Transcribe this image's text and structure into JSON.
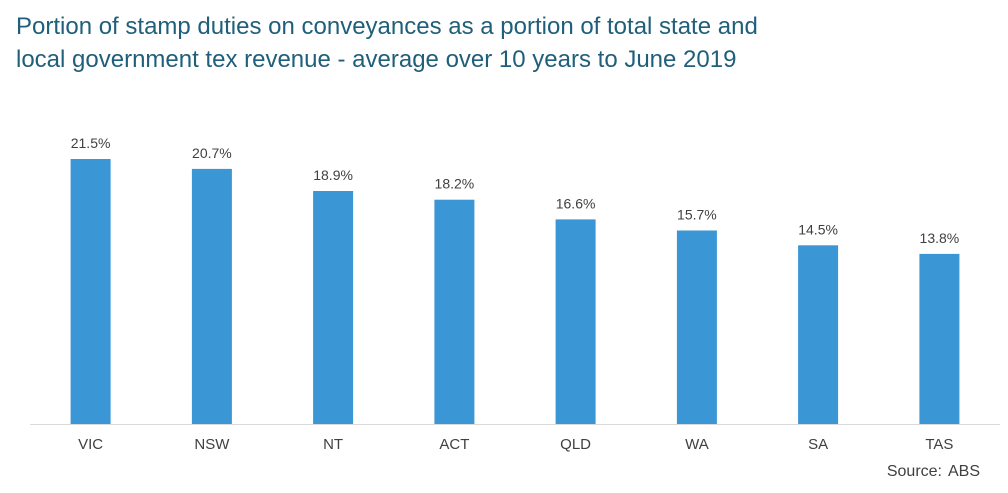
{
  "chart_data": {
    "type": "bar",
    "title_lines": [
      "Portion of stamp duties on conveyances as a portion of total state and",
      "local government tex revenue - average over 10 years to June 2019"
    ],
    "categories": [
      "VIC",
      "NSW",
      "NT",
      "ACT",
      "QLD",
      "WA",
      "SA",
      "TAS"
    ],
    "values": [
      21.5,
      20.7,
      18.9,
      18.2,
      16.6,
      15.7,
      14.5,
      13.8
    ],
    "value_labels": [
      "21.5%",
      "20.7%",
      "18.9%",
      "18.2%",
      "16.6%",
      "15.7%",
      "14.5%",
      "13.8%"
    ],
    "xlabel": "",
    "ylabel": "",
    "ylim": [
      0,
      21.5
    ],
    "grid": false,
    "legend": "none",
    "bar_color": "#3a96d5",
    "source_label": "Source:",
    "source_value": "ABS"
  }
}
